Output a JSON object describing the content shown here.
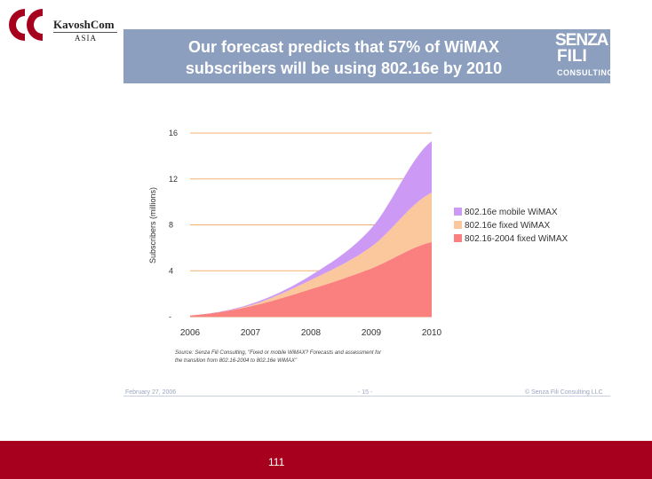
{
  "logo": {
    "name": "KavoshCom",
    "sub": "ASIA"
  },
  "slide": {
    "headline_1": "Our forecast predicts that 57% of WiMAX",
    "headline_2": "subscribers will be using 802.16e by 2010",
    "brand": {
      "line1": "SENZA",
      "line2": "FILI",
      "line3": "CONSULTING"
    },
    "source_1": "Source: Senza Fili Consulting, \"Fixed or mobile WiMAX? Forecasts and assessment for",
    "source_2": "the transition from 802.16-2004 to 802.16e WiMAX\"",
    "footer": {
      "date": "February 27, 2006",
      "page": "- 15 -",
      "copyright": "© Senza Fili Consulting LLC"
    }
  },
  "page_number": "111",
  "colors": {
    "banner": "#8d9fbe",
    "fixed_2004": "#fa8080",
    "e_fixed": "#fbc89d",
    "e_mobile": "#cc99f5",
    "bottom_bar": "#a6001e"
  },
  "chart_data": {
    "type": "area",
    "stacked": true,
    "x": [
      2006,
      2007,
      2008,
      2009,
      2010
    ],
    "x_tick_labels": [
      "2006",
      "2007",
      "2008",
      "2009",
      "2010"
    ],
    "y_tick_labels": [
      "-",
      "4",
      "8",
      "12",
      "16"
    ],
    "y_ticks": [
      0,
      4,
      8,
      12,
      16
    ],
    "ylim": [
      0,
      16
    ],
    "ylabel": "Subscribers (millions)",
    "xlabel": "",
    "series": [
      {
        "name": "802.16-2004 fixed WiMAX",
        "values": [
          0.1,
          0.9,
          2.4,
          4.2,
          6.5
        ]
      },
      {
        "name": "802.16e fixed WiMAX",
        "values": [
          0.0,
          0.1,
          0.8,
          1.9,
          4.3
        ]
      },
      {
        "name": "802.16e mobile WiMAX",
        "values": [
          0.0,
          0.1,
          0.4,
          1.6,
          4.5
        ]
      }
    ],
    "legend": [
      "802.16e mobile WiMAX",
      "802.16e fixed WiMAX",
      "802.16-2004 fixed WiMAX"
    ],
    "legend_position": "right"
  }
}
